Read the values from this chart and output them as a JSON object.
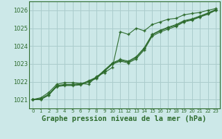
{
  "background_color": "#cce8e8",
  "grid_color": "#aacccc",
  "line_color": "#2d6b2d",
  "marker_color": "#2d6b2d",
  "xlabel": "Graphe pression niveau de la mer (hPa)",
  "xlabel_fontsize": 7.5,
  "ylim": [
    1020.5,
    1026.5
  ],
  "xlim": [
    -0.5,
    23.5
  ],
  "yticks": [
    1021,
    1022,
    1023,
    1024,
    1025,
    1026
  ],
  "xticks": [
    0,
    1,
    2,
    3,
    4,
    5,
    6,
    7,
    8,
    9,
    10,
    11,
    12,
    13,
    14,
    15,
    16,
    17,
    18,
    19,
    20,
    21,
    22,
    23
  ],
  "series": [
    [
      1021.0,
      1021.1,
      1021.4,
      1021.85,
      1021.95,
      1021.95,
      1021.9,
      1021.85,
      1022.3,
      1022.5,
      1022.8,
      1024.8,
      1024.65,
      1025.0,
      1024.85,
      1025.2,
      1025.35,
      1025.5,
      1025.55,
      1025.75,
      1025.82,
      1025.88,
      1026.0,
      1026.1
    ],
    [
      1021.0,
      1021.0,
      1021.25,
      1021.75,
      1021.82,
      1021.82,
      1021.85,
      1022.05,
      1022.25,
      1022.65,
      1023.05,
      1023.25,
      1023.15,
      1023.4,
      1023.9,
      1024.65,
      1024.88,
      1025.05,
      1025.2,
      1025.42,
      1025.52,
      1025.68,
      1025.85,
      1026.05
    ],
    [
      1021.0,
      1021.0,
      1021.25,
      1021.72,
      1021.78,
      1021.78,
      1021.82,
      1021.98,
      1022.18,
      1022.58,
      1022.98,
      1023.15,
      1023.05,
      1023.28,
      1023.78,
      1024.55,
      1024.78,
      1024.95,
      1025.1,
      1025.35,
      1025.45,
      1025.62,
      1025.78,
      1026.0
    ],
    [
      1021.0,
      1021.05,
      1021.3,
      1021.78,
      1021.85,
      1021.85,
      1021.88,
      1022.02,
      1022.22,
      1022.62,
      1023.02,
      1023.2,
      1023.1,
      1023.35,
      1023.85,
      1024.62,
      1024.85,
      1025.02,
      1025.15,
      1025.38,
      1025.48,
      1025.65,
      1025.82,
      1026.02
    ]
  ]
}
